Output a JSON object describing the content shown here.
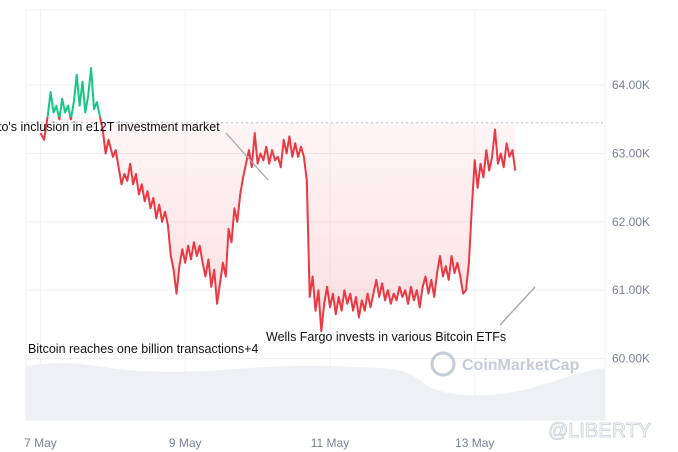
{
  "chart_data": {
    "type": "line",
    "title": "",
    "xlabel": "",
    "ylabel": "",
    "x_ticks": [
      "7 May",
      "9 May",
      "11 May",
      "13 May"
    ],
    "y_ticks": [
      "60.00K",
      "61.00K",
      "62.00K",
      "63.00K",
      "64.00K"
    ],
    "ylim": [
      59.1,
      65.1
    ],
    "reference_price": 63.45,
    "grid": true,
    "colors": {
      "above": "#16c784",
      "below": "#ea3943"
    },
    "series": [
      {
        "values": [
          [
            7.0,
            63.3
          ],
          [
            7.05,
            63.2
          ],
          [
            7.1,
            63.55
          ],
          [
            7.14,
            63.9
          ],
          [
            7.18,
            63.6
          ],
          [
            7.22,
            63.7
          ],
          [
            7.26,
            63.5
          ],
          [
            7.3,
            63.8
          ],
          [
            7.34,
            63.6
          ],
          [
            7.38,
            63.7
          ],
          [
            7.42,
            63.5
          ],
          [
            7.46,
            63.75
          ],
          [
            7.5,
            64.15
          ],
          [
            7.54,
            63.7
          ],
          [
            7.58,
            64.05
          ],
          [
            7.62,
            63.6
          ],
          [
            7.66,
            63.85
          ],
          [
            7.7,
            64.25
          ],
          [
            7.74,
            63.65
          ],
          [
            7.78,
            63.75
          ],
          [
            7.82,
            63.55
          ],
          [
            7.86,
            63.35
          ],
          [
            7.9,
            63.0
          ],
          [
            7.94,
            63.2
          ],
          [
            8.0,
            62.95
          ],
          [
            8.04,
            63.05
          ],
          [
            8.08,
            62.8
          ],
          [
            8.12,
            62.55
          ],
          [
            8.16,
            62.7
          ],
          [
            8.2,
            62.6
          ],
          [
            8.24,
            62.85
          ],
          [
            8.28,
            62.55
          ],
          [
            8.32,
            62.7
          ],
          [
            8.36,
            62.4
          ],
          [
            8.4,
            62.55
          ],
          [
            8.44,
            62.3
          ],
          [
            8.48,
            62.45
          ],
          [
            8.52,
            62.2
          ],
          [
            8.56,
            62.35
          ],
          [
            8.6,
            62.05
          ],
          [
            8.64,
            62.25
          ],
          [
            8.68,
            62.0
          ],
          [
            8.72,
            62.15
          ],
          [
            8.76,
            61.95
          ],
          [
            8.8,
            61.5
          ],
          [
            8.84,
            61.3
          ],
          [
            8.88,
            60.95
          ],
          [
            8.92,
            61.35
          ],
          [
            8.96,
            61.6
          ],
          [
            9.0,
            61.4
          ],
          [
            9.04,
            61.65
          ],
          [
            9.08,
            61.45
          ],
          [
            9.12,
            61.7
          ],
          [
            9.16,
            61.5
          ],
          [
            9.2,
            61.65
          ],
          [
            9.24,
            61.4
          ],
          [
            9.28,
            61.2
          ],
          [
            9.32,
            61.45
          ],
          [
            9.36,
            61.05
          ],
          [
            9.4,
            61.3
          ],
          [
            9.44,
            60.8
          ],
          [
            9.48,
            61.1
          ],
          [
            9.52,
            61.4
          ],
          [
            9.56,
            61.2
          ],
          [
            9.6,
            61.9
          ],
          [
            9.64,
            61.7
          ],
          [
            9.68,
            62.2
          ],
          [
            9.72,
            62.0
          ],
          [
            9.76,
            62.4
          ],
          [
            9.8,
            62.65
          ],
          [
            9.84,
            62.85
          ],
          [
            9.88,
            63.05
          ],
          [
            9.92,
            62.8
          ],
          [
            9.96,
            63.3
          ],
          [
            10.0,
            62.85
          ],
          [
            10.04,
            63.0
          ],
          [
            10.08,
            62.9
          ],
          [
            10.12,
            63.1
          ],
          [
            10.16,
            62.85
          ],
          [
            10.2,
            63.05
          ],
          [
            10.24,
            62.9
          ],
          [
            10.28,
            62.95
          ],
          [
            10.32,
            62.8
          ],
          [
            10.36,
            63.2
          ],
          [
            10.4,
            63.0
          ],
          [
            10.44,
            63.25
          ],
          [
            10.48,
            62.95
          ],
          [
            10.52,
            63.15
          ],
          [
            10.56,
            62.95
          ],
          [
            10.6,
            63.1
          ],
          [
            10.64,
            62.95
          ],
          [
            10.68,
            62.6
          ],
          [
            10.72,
            60.9
          ],
          [
            10.76,
            61.2
          ],
          [
            10.8,
            60.7
          ],
          [
            10.84,
            61.0
          ],
          [
            10.88,
            60.4
          ],
          [
            10.92,
            60.8
          ],
          [
            10.96,
            61.05
          ],
          [
            11.0,
            60.75
          ],
          [
            11.04,
            60.95
          ],
          [
            11.08,
            60.65
          ],
          [
            11.12,
            60.9
          ],
          [
            11.16,
            60.7
          ],
          [
            11.2,
            61.0
          ],
          [
            11.24,
            60.8
          ],
          [
            11.28,
            60.95
          ],
          [
            11.32,
            60.7
          ],
          [
            11.36,
            60.9
          ],
          [
            11.4,
            60.6
          ],
          [
            11.44,
            60.85
          ],
          [
            11.48,
            60.7
          ],
          [
            11.52,
            60.95
          ],
          [
            11.56,
            60.75
          ],
          [
            11.6,
            60.95
          ],
          [
            11.64,
            61.15
          ],
          [
            11.68,
            60.9
          ],
          [
            11.72,
            61.1
          ],
          [
            11.76,
            60.85
          ],
          [
            11.8,
            61.0
          ],
          [
            11.84,
            60.8
          ],
          [
            11.88,
            60.95
          ],
          [
            11.92,
            60.85
          ],
          [
            11.96,
            61.05
          ],
          [
            12.0,
            60.9
          ],
          [
            12.04,
            61.0
          ],
          [
            12.08,
            60.8
          ],
          [
            12.12,
            61.05
          ],
          [
            12.16,
            60.85
          ],
          [
            12.2,
            61.0
          ],
          [
            12.24,
            60.75
          ],
          [
            12.28,
            61.05
          ],
          [
            12.32,
            61.2
          ],
          [
            12.36,
            60.95
          ],
          [
            12.4,
            61.15
          ],
          [
            12.44,
            60.9
          ],
          [
            12.48,
            61.25
          ],
          [
            12.52,
            61.5
          ],
          [
            12.56,
            61.2
          ],
          [
            12.6,
            61.35
          ],
          [
            12.64,
            61.15
          ],
          [
            12.68,
            61.5
          ],
          [
            12.72,
            61.25
          ],
          [
            12.76,
            61.4
          ],
          [
            12.8,
            61.2
          ],
          [
            12.84,
            60.95
          ],
          [
            12.88,
            61.0
          ],
          [
            12.92,
            61.4
          ],
          [
            12.96,
            62.2
          ],
          [
            13.0,
            62.9
          ],
          [
            13.04,
            62.5
          ],
          [
            13.08,
            62.85
          ],
          [
            13.12,
            62.65
          ],
          [
            13.16,
            63.05
          ],
          [
            13.2,
            62.75
          ],
          [
            13.24,
            62.95
          ],
          [
            13.28,
            63.35
          ],
          [
            13.32,
            62.85
          ],
          [
            13.36,
            63.0
          ],
          [
            13.4,
            62.8
          ],
          [
            13.44,
            63.15
          ],
          [
            13.48,
            62.95
          ],
          [
            13.52,
            63.05
          ],
          [
            13.56,
            62.75
          ]
        ]
      }
    ],
    "annotations": [
      {
        "text": "to's inclusion in e12T investment market",
        "x": 10.0,
        "y": 62.8
      },
      {
        "text": "Wells Fargo invests in various Bitcoin ETFs",
        "x": 13.2,
        "y": 61.0
      },
      {
        "text": "Bitcoin reaches one billion transactions+4",
        "x": 7.0,
        "y": 60.0
      }
    ]
  },
  "watermarks": {
    "coinmarketcap": "CoinMarketCap",
    "liberty": "@LIBERTY"
  }
}
